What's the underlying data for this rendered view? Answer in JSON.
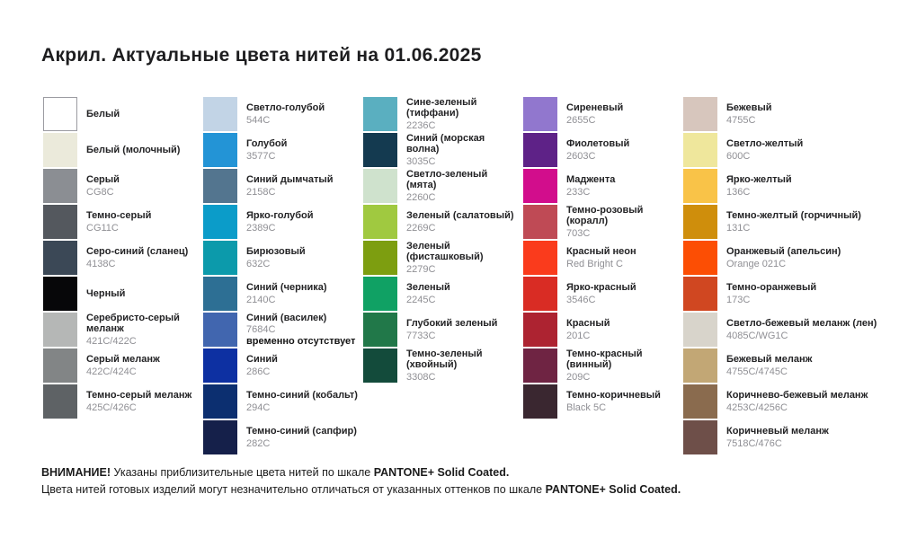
{
  "title": "Акрил. Актуальные цвета нитей на 01.06.2025",
  "columns": [
    {
      "items": [
        {
          "name": "Белый",
          "code": "",
          "color": "#ffffff",
          "border": "#9b9ba1"
        },
        {
          "name": "Белый (молочный)",
          "code": "",
          "color": "#ebeadb"
        },
        {
          "name": "Серый",
          "code": "CG8C",
          "color": "#8b8e93"
        },
        {
          "name": "Темно-серый",
          "code": "CG11C",
          "color": "#54585e"
        },
        {
          "name": "Серо-синий (сланец)",
          "code": "4138C",
          "color": "#3b4856"
        },
        {
          "name": "Черный",
          "code": "",
          "color": "#070709"
        },
        {
          "name": "Серебристо-серый меланж",
          "code": "421C/422C",
          "color": "#b5b7b6"
        },
        {
          "name": "Серый меланж",
          "code": "422C/424C",
          "color": "#828586"
        },
        {
          "name": "Темно-серый меланж",
          "code": "425C/426C",
          "color": "#5e6265"
        }
      ]
    },
    {
      "items": [
        {
          "name": "Светло-голубой",
          "code": "544C",
          "color": "#c2d4e6"
        },
        {
          "name": "Голубой",
          "code": "3577C",
          "color": "#2394d6"
        },
        {
          "name": "Синий дымчатый",
          "code": "2158C",
          "color": "#53758f"
        },
        {
          "name": "Ярко-голубой",
          "code": "2389C",
          "color": "#0b9cc9"
        },
        {
          "name": "Бирюзовый",
          "code": "632C",
          "color": "#0c9aab"
        },
        {
          "name": "Синий (черника)",
          "code": "2140C",
          "color": "#2d6f94"
        },
        {
          "name": "Синий (василек)",
          "code": "7684C",
          "color": "#4166af",
          "note": "временно отсутствует"
        },
        {
          "name": "Синий",
          "code": "286C",
          "color": "#0d30a2"
        },
        {
          "name": "Темно-синий (кобальт)",
          "code": "294C",
          "color": "#0c2f70"
        },
        {
          "name": "Темно-синий (сапфир)",
          "code": "282C",
          "color": "#15204a"
        }
      ]
    },
    {
      "items": [
        {
          "name": "Сине-зеленый (тиффани)",
          "code": "2236C",
          "color": "#5aafc0"
        },
        {
          "name": "Синий (морская волна)",
          "code": "3035C",
          "color": "#143a50"
        },
        {
          "name": "Светло-зеленый (мята)",
          "code": "2260C",
          "color": "#cfe2cd"
        },
        {
          "name": "Зеленый (салатовый)",
          "code": "2269C",
          "color": "#a0c940"
        },
        {
          "name": "Зеленый (фисташковый)",
          "code": "2279C",
          "color": "#7d9e10"
        },
        {
          "name": "Зеленый",
          "code": "2245C",
          "color": "#10a164"
        },
        {
          "name": "Глубокий зеленый",
          "code": "7733C",
          "color": "#217849"
        },
        {
          "name": "Темно-зеленый (хвойный)",
          "code": "3308C",
          "color": "#134b3b"
        }
      ]
    },
    {
      "items": [
        {
          "name": "Сиреневый",
          "code": "2655C",
          "color": "#9177ce"
        },
        {
          "name": "Фиолетовый",
          "code": "2603C",
          "color": "#5e2287"
        },
        {
          "name": "Маджента",
          "code": "233C",
          "color": "#d20d8c"
        },
        {
          "name": "Темно-розовый (коралл)",
          "code": "703C",
          "color": "#bf4a55"
        },
        {
          "name": "Красный неон",
          "code": "Red Bright C",
          "color": "#fa3b1c"
        },
        {
          "name": "Ярко-красный",
          "code": "3546C",
          "color": "#d92c24"
        },
        {
          "name": "Красный",
          "code": "201C",
          "color": "#ad2331"
        },
        {
          "name": "Темно-красный (винный)",
          "code": "209C",
          "color": "#6f2443"
        },
        {
          "name": "Темно-коричневый",
          "code": "Black 5C",
          "color": "#3a2730"
        }
      ]
    },
    {
      "items": [
        {
          "name": "Бежевый",
          "code": "4755C",
          "color": "#d7c6bd"
        },
        {
          "name": "Светло-желтый",
          "code": "600C",
          "color": "#efe79c"
        },
        {
          "name": "Ярко-желтый",
          "code": "136C",
          "color": "#f9c348"
        },
        {
          "name": "Темно-желтый (горчичный)",
          "code": "131C",
          "color": "#cf8e0c"
        },
        {
          "name": "Оранжевый (апельсин)",
          "code": "Orange 021C",
          "color": "#fc4e04"
        },
        {
          "name": "Темно-оранжевый",
          "code": "173C",
          "color": "#d04721"
        },
        {
          "name": "Светло-бежевый меланж (лен)",
          "code": "4085C/WG1C",
          "color": "#d8d4cb"
        },
        {
          "name": "Бежевый меланж",
          "code": "4755C/4745C",
          "color": "#c2a775"
        },
        {
          "name": "Коричнево-бежевый меланж",
          "code": "4253C/4256C",
          "color": "#8a6b4e"
        },
        {
          "name": "Коричневый меланж",
          "code": "7518C/476C",
          "color": "#6e4f49"
        }
      ]
    }
  ],
  "footer": {
    "warning_label": "ВНИМАНИЕ!",
    "line1_text": "Указаны приблизительные цвета нитей по шкале",
    "line1_scale": "PANTONE+ Solid Coated.",
    "line2_text": "Цвета нитей готовых изделий могут незначительно отличаться от указанных оттенков по шкале",
    "line2_scale": "PANTONE+ Solid Coated."
  }
}
